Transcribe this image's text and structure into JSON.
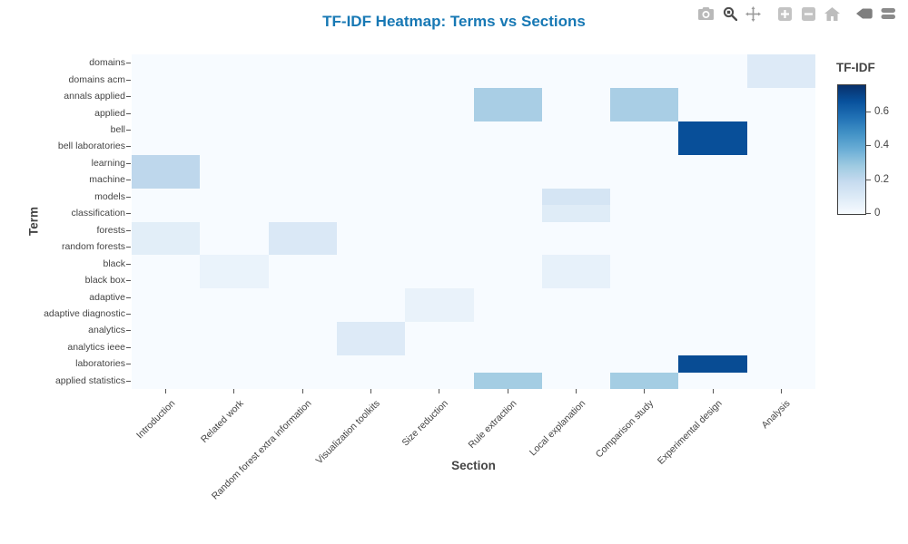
{
  "title": "TF-IDF Heatmap: Terms vs Sections",
  "title_color": "#1778b4",
  "modebar": {
    "icons": [
      "camera",
      "zoom",
      "pan",
      "zoom-in",
      "zoom-out",
      "home",
      "hover-closest",
      "hover-compare"
    ]
  },
  "chart_data": {
    "type": "heatmap",
    "title": "TF-IDF Heatmap: Terms vs Sections",
    "xlabel": "Section",
    "ylabel": "Term",
    "x": [
      "Introduction",
      "Related work",
      "Random forest extra information",
      "Visualization toolkits",
      "Size reduction",
      "Rule extraction",
      "Local explanation",
      "Comparison study",
      "Experimental design",
      "Analysis"
    ],
    "y": [
      "domains",
      "domains acm",
      "annals applied",
      "applied",
      "bell",
      "bell laboratories",
      "learning",
      "machine",
      "models",
      "classification",
      "forests",
      "random forests",
      "black",
      "black box",
      "adaptive",
      "adaptive diagnostic",
      "analytics",
      "analytics ieee",
      "laboratories",
      "applied statistics"
    ],
    "z": [
      [
        0,
        0,
        0,
        0,
        0,
        0,
        0,
        0,
        0,
        0.1
      ],
      [
        0,
        0,
        0,
        0,
        0,
        0,
        0,
        0,
        0,
        0.1
      ],
      [
        0,
        0,
        0,
        0,
        0,
        0.26,
        0,
        0.26,
        0,
        0
      ],
      [
        0,
        0,
        0,
        0,
        0,
        0.26,
        0,
        0.26,
        0,
        0
      ],
      [
        0,
        0,
        0,
        0,
        0,
        0,
        0,
        0,
        0.67,
        0
      ],
      [
        0,
        0,
        0,
        0,
        0,
        0,
        0,
        0,
        0.67,
        0
      ],
      [
        0.21,
        0,
        0,
        0,
        0,
        0,
        0,
        0,
        0,
        0
      ],
      [
        0.21,
        0,
        0,
        0,
        0,
        0,
        0,
        0,
        0,
        0
      ],
      [
        0,
        0,
        0,
        0,
        0,
        0,
        0.13,
        0,
        0,
        0
      ],
      [
        0,
        0,
        0,
        0,
        0,
        0,
        0.09,
        0,
        0,
        0
      ],
      [
        0.08,
        0,
        0.11,
        0,
        0,
        0,
        0,
        0,
        0,
        0
      ],
      [
        0.08,
        0,
        0.11,
        0,
        0,
        0,
        0,
        0,
        0,
        0
      ],
      [
        0,
        0.05,
        0,
        0,
        0,
        0,
        0.06,
        0,
        0,
        0
      ],
      [
        0,
        0.05,
        0,
        0,
        0,
        0,
        0.06,
        0,
        0,
        0
      ],
      [
        0,
        0,
        0,
        0,
        0.055,
        0,
        0,
        0,
        0,
        0
      ],
      [
        0,
        0,
        0,
        0,
        0.055,
        0,
        0,
        0,
        0,
        0
      ],
      [
        0,
        0,
        0,
        0.1,
        0,
        0,
        0,
        0,
        0,
        0
      ],
      [
        0,
        0,
        0,
        0.1,
        0,
        0,
        0,
        0,
        0,
        0
      ],
      [
        0,
        0,
        0,
        0,
        0,
        0,
        0,
        0,
        0.68,
        0
      ],
      [
        0,
        0,
        0,
        0,
        0,
        0.27,
        0,
        0.27,
        0,
        0
      ]
    ],
    "colorbar": {
      "title": "TF-IDF",
      "ticks": [
        0,
        0.2,
        0.4,
        0.6
      ],
      "zmin": 0,
      "zmax": 0.76
    },
    "colorscale_name": "Blues",
    "colorscale": [
      [
        0,
        "#f7fbff"
      ],
      [
        0.125,
        "#deebf7"
      ],
      [
        0.25,
        "#c6dbef"
      ],
      [
        0.375,
        "#9ecae1"
      ],
      [
        0.5,
        "#6baed6"
      ],
      [
        0.625,
        "#4292c6"
      ],
      [
        0.75,
        "#2171b5"
      ],
      [
        0.875,
        "#08519c"
      ],
      [
        1,
        "#08306b"
      ]
    ],
    "legend_position": "right",
    "grid": false
  }
}
